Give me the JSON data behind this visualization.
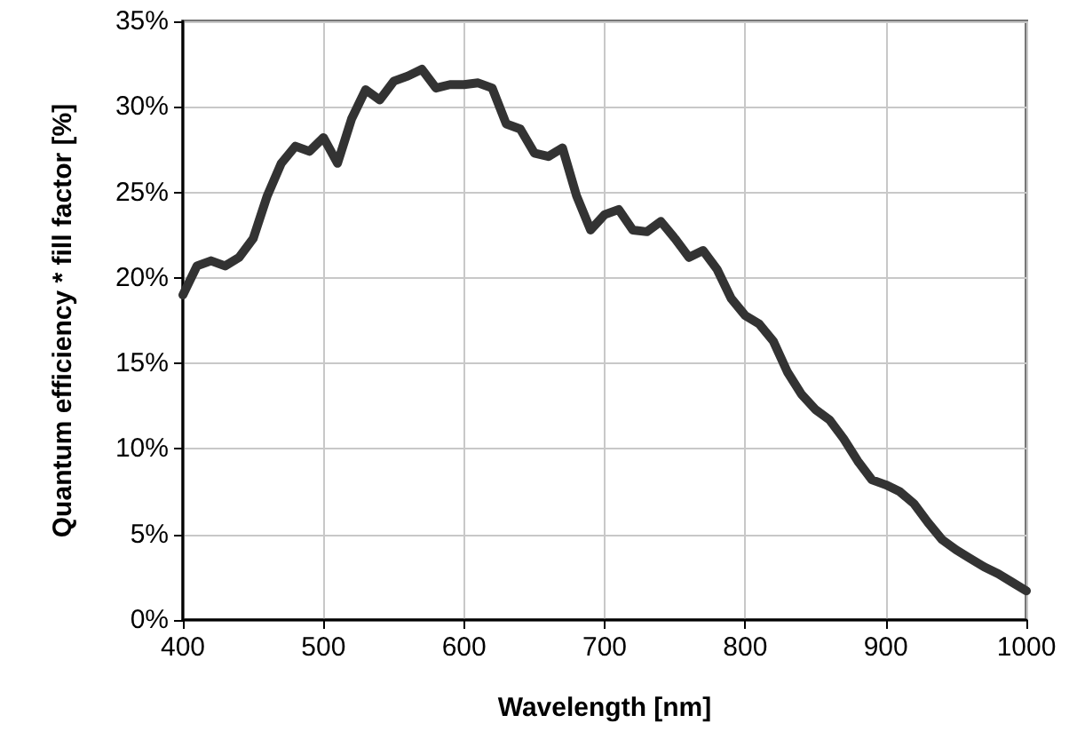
{
  "chart_data": {
    "type": "line",
    "xlabel": "Wavelength [nm]",
    "ylabel": "Quantum efficiency * fill factor [%]",
    "x": [
      400,
      410,
      420,
      430,
      440,
      450,
      460,
      470,
      480,
      490,
      500,
      510,
      520,
      530,
      540,
      550,
      560,
      570,
      580,
      590,
      600,
      610,
      620,
      630,
      640,
      650,
      660,
      670,
      680,
      690,
      700,
      710,
      720,
      730,
      740,
      750,
      760,
      770,
      780,
      790,
      800,
      810,
      820,
      830,
      840,
      850,
      860,
      870,
      880,
      890,
      900,
      910,
      920,
      930,
      940,
      950,
      960,
      970,
      980,
      990,
      1000
    ],
    "series": [
      {
        "color": "#333333",
        "values": [
          19,
          20.7,
          21,
          20.7,
          21.2,
          22.3,
          24.8,
          26.7,
          27.7,
          27.4,
          28.2,
          26.7,
          29.3,
          31,
          30.4,
          31.5,
          31.8,
          32.2,
          31.1,
          31.3,
          31.3,
          31.4,
          31.1,
          29,
          28.7,
          27.3,
          27.1,
          27.6,
          24.8,
          22.8,
          23.7,
          24,
          22.8,
          22.7,
          23.3,
          22.3,
          21.2,
          21.6,
          20.5,
          18.8,
          17.8,
          17.3,
          16.3,
          14.5,
          13.2,
          12.3,
          11.7,
          10.6,
          9.3,
          8.2,
          7.9,
          7.5,
          6.8,
          5.7,
          4.7,
          4.1,
          3.6,
          3.1,
          2.7,
          2.2,
          1.7
        ]
      }
    ],
    "xlim": [
      400,
      1000
    ],
    "xticks": [
      400,
      500,
      600,
      700,
      800,
      900,
      1000
    ],
    "ylim": [
      0,
      35
    ],
    "yticks": [
      {
        "value": 0,
        "label": "0%"
      },
      {
        "value": 5,
        "label": "5%"
      },
      {
        "value": 10,
        "label": "10%"
      },
      {
        "value": 15,
        "label": "15%"
      },
      {
        "value": 20,
        "label": "20%"
      },
      {
        "value": 25,
        "label": "25%"
      },
      {
        "value": 30,
        "label": "30%"
      },
      {
        "value": 35,
        "label": "35%"
      }
    ],
    "grid": true,
    "marker": "none",
    "line_style": "solid"
  }
}
